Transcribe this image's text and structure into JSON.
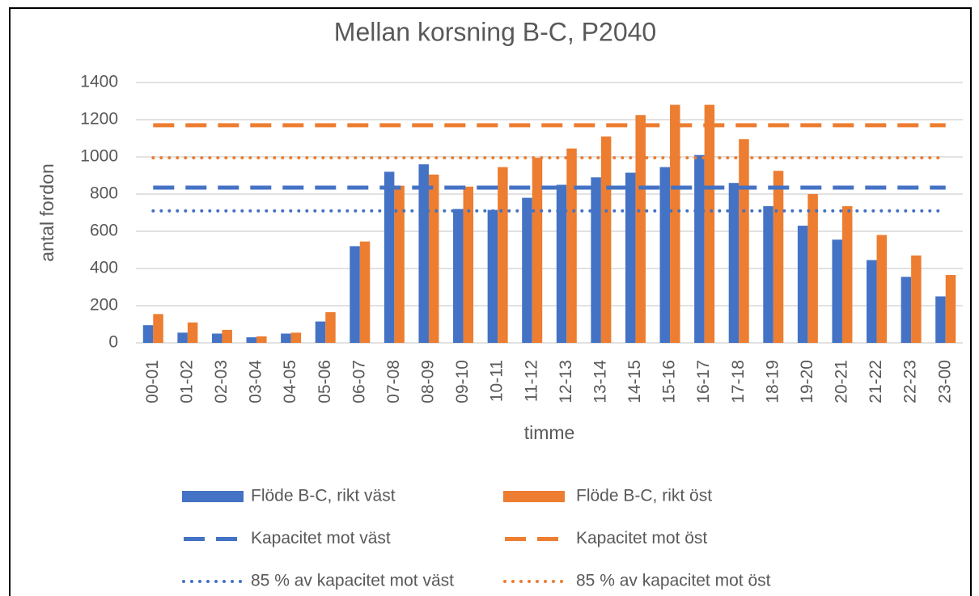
{
  "chart_data": {
    "type": "bar",
    "title": "Mellan korsning B-C, P2040",
    "x_label": "timme",
    "y_label": "antal fordon",
    "categories": [
      "00-01",
      "01-02",
      "02-03",
      "03-04",
      "04-05",
      "05-06",
      "06-07",
      "07-08",
      "08-09",
      "09-10",
      "10-11",
      "11-12",
      "12-13",
      "13-14",
      "14-15",
      "15-16",
      "16-17",
      "17-18",
      "18-19",
      "19-20",
      "20-21",
      "21-22",
      "22-23",
      "23-00"
    ],
    "ylim": [
      0,
      1400
    ],
    "yticks": [
      0,
      200,
      400,
      600,
      800,
      1000,
      1200,
      1400
    ],
    "grid": true,
    "legend": "bottom",
    "series": [
      {
        "name": "Flöde B-C, rikt väst",
        "type": "bar",
        "color": "#4472c4",
        "values": [
          95,
          55,
          50,
          30,
          50,
          115,
          520,
          920,
          960,
          720,
          715,
          780,
          850,
          890,
          915,
          945,
          1010,
          860,
          735,
          630,
          555,
          445,
          355,
          250
        ]
      },
      {
        "name": "Flöde B-C, rikt öst",
        "type": "bar",
        "color": "#ed7d31",
        "values": [
          155,
          110,
          70,
          35,
          55,
          165,
          545,
          845,
          905,
          840,
          945,
          995,
          1045,
          1110,
          1225,
          1280,
          1280,
          1095,
          925,
          800,
          735,
          580,
          470,
          365
        ]
      },
      {
        "name": "Kapacitet mot väst",
        "type": "line",
        "style": "dash",
        "color": "#4472c4",
        "values": [
          835,
          835,
          835,
          835,
          835,
          835,
          835,
          835,
          835,
          835,
          835,
          835,
          835,
          835,
          835,
          835,
          835,
          835,
          835,
          835,
          835,
          835,
          835,
          835
        ]
      },
      {
        "name": "Kapacitet mot öst",
        "type": "line",
        "style": "dash",
        "color": "#ed7d31",
        "values": [
          1170,
          1170,
          1170,
          1170,
          1170,
          1170,
          1170,
          1170,
          1170,
          1170,
          1170,
          1170,
          1170,
          1170,
          1170,
          1170,
          1170,
          1170,
          1170,
          1170,
          1170,
          1170,
          1170,
          1170
        ]
      },
      {
        "name": "85 % av kapacitet mot väst",
        "type": "line",
        "style": "dot",
        "color": "#4472c4",
        "values": [
          710,
          710,
          710,
          710,
          710,
          710,
          710,
          710,
          710,
          710,
          710,
          710,
          710,
          710,
          710,
          710,
          710,
          710,
          710,
          710,
          710,
          710,
          710,
          710
        ]
      },
      {
        "name": "85 % av kapacitet mot öst",
        "type": "line",
        "style": "dot",
        "color": "#ed7d31",
        "values": [
          995,
          995,
          995,
          995,
          995,
          995,
          995,
          995,
          995,
          995,
          995,
          995,
          995,
          995,
          995,
          995,
          995,
          995,
          995,
          995,
          995,
          995,
          995,
          995
        ]
      }
    ]
  }
}
